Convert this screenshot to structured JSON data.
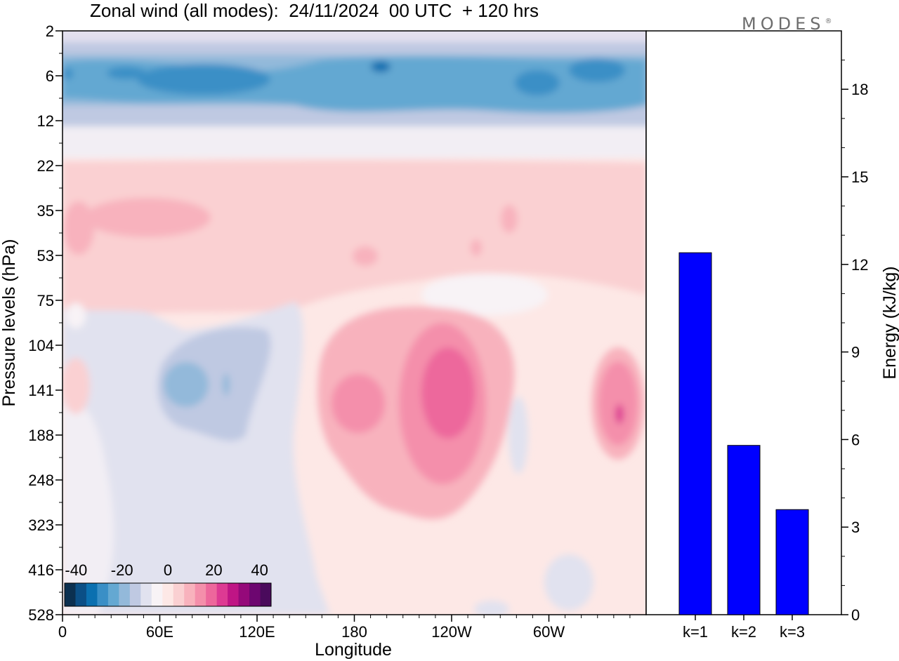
{
  "title": "Zonal wind (all modes):  24/11/2024  00 UTC  + 120 hrs",
  "brand": "MODES",
  "brand_mark": "®",
  "colors": {
    "bar_fill": "#0000ff",
    "negative_extreme": "#0b3050",
    "positive_extreme": "#4a0a5c"
  },
  "chart_data": [
    {
      "type": "heatmap",
      "title": "",
      "xlabel": "Longitude",
      "ylabel": "Pressure levels (hPa)",
      "x_ticks": [
        "0",
        "60E",
        "120E",
        "180",
        "120W",
        "60W"
      ],
      "y_ticks": [
        "2",
        "6",
        "12",
        "22",
        "35",
        "53",
        "75",
        "104",
        "141",
        "188",
        "248",
        "323",
        "416",
        "528"
      ],
      "colorbar": {
        "tick_labels": [
          "-40",
          "-20",
          "0",
          "20",
          "40"
        ],
        "range": [
          -45,
          45
        ],
        "colors": [
          "#0b3050",
          "#0b4f86",
          "#0b70b0",
          "#3a8fc6",
          "#64a8d2",
          "#93b9da",
          "#bfc9e2",
          "#e1e2ef",
          "#f8f3f6",
          "#fde8e6",
          "#fad0d2",
          "#f8b2bd",
          "#f48fab",
          "#ed679c",
          "#dd3a93",
          "#bf1585",
          "#95097a",
          "#6d0670",
          "#4a0a5c"
        ]
      },
      "features": [
        {
          "kind": "easterly jet",
          "level_hPa": [
            4,
            9
          ],
          "value": -25
        },
        {
          "kind": "westerly maximum",
          "longitude": "130W",
          "level_hPa": 141,
          "value": 25
        },
        {
          "kind": "westerly maximum",
          "longitude": "175E",
          "level_hPa": 141,
          "value": 20
        },
        {
          "kind": "westerly maximum",
          "longitude": "15W",
          "level_hPa": 141,
          "value": 25
        },
        {
          "kind": "easterly minimum",
          "longitude": "65E",
          "level_hPa": 141,
          "value": -15
        }
      ]
    },
    {
      "type": "bar",
      "title": "",
      "categories": [
        "k=1",
        "k=2",
        "k=3"
      ],
      "values": [
        12.4,
        5.8,
        3.6
      ],
      "ylabel": "Energy (kJ/kg)",
      "ylim": [
        0,
        20
      ],
      "yticks": [
        "0",
        "3",
        "6",
        "9",
        "12",
        "15",
        "18"
      ]
    }
  ]
}
